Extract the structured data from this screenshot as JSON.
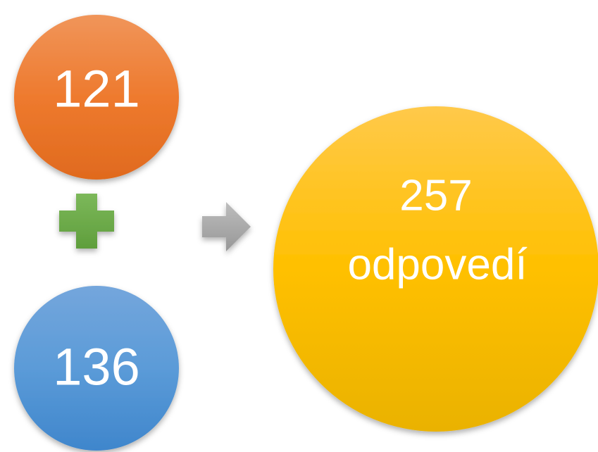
{
  "nodes": [
    {
      "label": "121"
    },
    {
      "label": "136"
    }
  ],
  "result": {
    "lines": [
      "257",
      "odpovedí"
    ]
  }
}
